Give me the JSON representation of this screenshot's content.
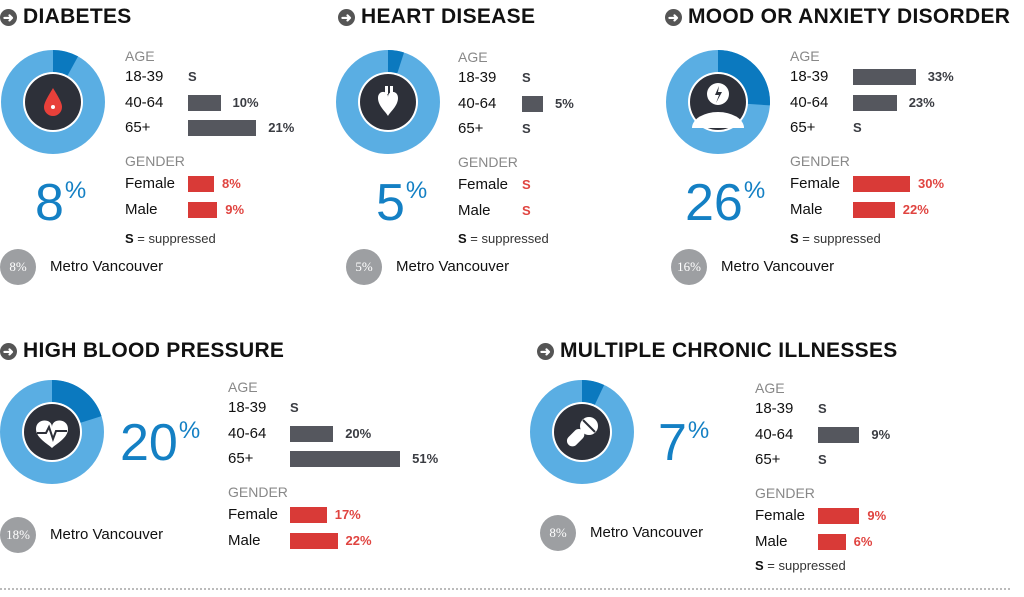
{
  "colors": {
    "donut_base": "#5aaee3",
    "donut_highlight": "#0b79bf",
    "icon_bg": "#2d3039",
    "big_value": "#1480c4",
    "age_bar": "#55575e",
    "gender_bar": "#d93a37",
    "metro_circle": "#9d9fa2"
  },
  "labels": {
    "age": "AGE",
    "gender": "GENDER",
    "suppressed_key": "S",
    "suppressed_text": "= suppressed",
    "metro": "Metro Vancouver",
    "pct": "%"
  },
  "chart_data": [
    {
      "type": "bar",
      "title": "DIABETES",
      "icon": "blood-drop-icon",
      "value": 8,
      "metro_value": "8%",
      "age": [
        {
          "label": "18-39",
          "value": null,
          "text": "S"
        },
        {
          "label": "40-64",
          "value": 10,
          "text": "10%"
        },
        {
          "label": "65+",
          "value": 21,
          "text": "21%"
        }
      ],
      "gender": [
        {
          "label": "Female",
          "value": 8,
          "text": "8%"
        },
        {
          "label": "Male",
          "value": 9,
          "text": "9%"
        }
      ],
      "show_suppressed_note": true
    },
    {
      "type": "bar",
      "title": "HEART DISEASE",
      "icon": "heart-organ-icon",
      "value": 5,
      "metro_value": "5%",
      "age": [
        {
          "label": "18-39",
          "value": null,
          "text": "S"
        },
        {
          "label": "40-64",
          "value": 5,
          "text": "5%"
        },
        {
          "label": "65+",
          "value": null,
          "text": "S"
        }
      ],
      "gender": [
        {
          "label": "Female",
          "value": null,
          "text": "S"
        },
        {
          "label": "Male",
          "value": null,
          "text": "S"
        }
      ],
      "show_suppressed_note": true
    },
    {
      "type": "bar",
      "title": "MOOD OR ANXIETY DISORDER",
      "icon": "head-lightning-icon",
      "value": 26,
      "metro_value": "16%",
      "age": [
        {
          "label": "18-39",
          "value": 33,
          "text": "33%"
        },
        {
          "label": "40-64",
          "value": 23,
          "text": "23%"
        },
        {
          "label": "65+",
          "value": null,
          "text": "S"
        }
      ],
      "gender": [
        {
          "label": "Female",
          "value": 30,
          "text": "30%"
        },
        {
          "label": "Male",
          "value": 22,
          "text": "22%"
        }
      ],
      "show_suppressed_note": true
    },
    {
      "type": "bar",
      "title": "HIGH BLOOD PRESSURE",
      "icon": "heart-pulse-icon",
      "value": 20,
      "metro_value": "18%",
      "age": [
        {
          "label": "18-39",
          "value": null,
          "text": "S"
        },
        {
          "label": "40-64",
          "value": 20,
          "text": "20%"
        },
        {
          "label": "65+",
          "value": 51,
          "text": "51%"
        }
      ],
      "gender": [
        {
          "label": "Female",
          "value": 17,
          "text": "17%"
        },
        {
          "label": "Male",
          "value": 22,
          "text": "22%"
        }
      ],
      "show_suppressed_note": false
    },
    {
      "type": "bar",
      "title": "MULTIPLE CHRONIC ILLNESSES",
      "icon": "pills-icon",
      "value": 7,
      "metro_value": "8%",
      "age": [
        {
          "label": "18-39",
          "value": null,
          "text": "S"
        },
        {
          "label": "40-64",
          "value": 9,
          "text": "9%"
        },
        {
          "label": "65+",
          "value": null,
          "text": "S"
        }
      ],
      "gender": [
        {
          "label": "Female",
          "value": 9,
          "text": "9%"
        },
        {
          "label": "Male",
          "value": 6,
          "text": "6%"
        }
      ],
      "show_suppressed_note": true
    }
  ]
}
